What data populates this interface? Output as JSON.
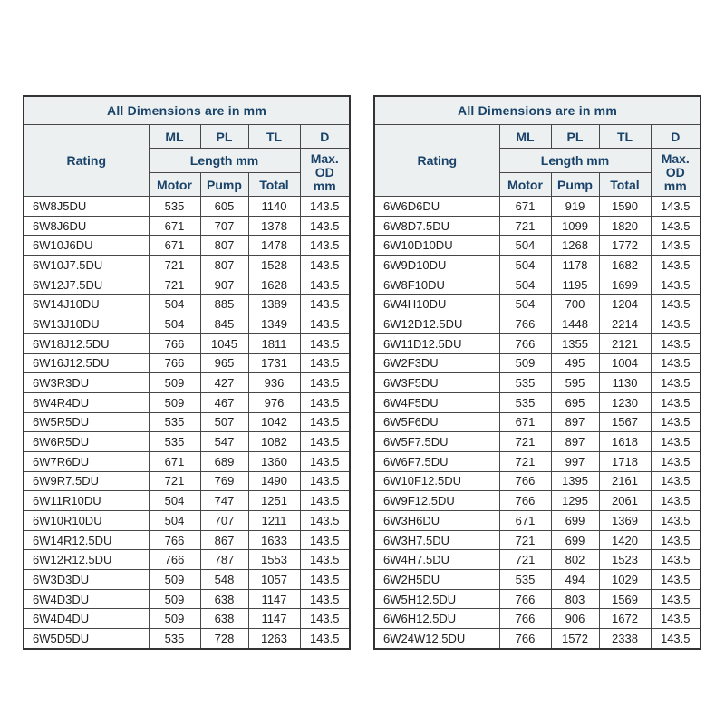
{
  "colors": {
    "page_bg": "#ffffff",
    "header_bg": "#edf0f1",
    "header_text": "#1a4369",
    "data_text": "#212121",
    "border": "#474747",
    "border_dark": "#333333",
    "row_bg": "#ffffff"
  },
  "tables": [
    {
      "title": "All Dimensions are in mm",
      "header": {
        "rating": "Rating",
        "ml": "ML",
        "pl": "PL",
        "tl": "TL",
        "d": "D",
        "length_group": "Length mm",
        "max_od": "Max. OD mm",
        "motor": "Motor",
        "pump": "Pump",
        "total": "Total"
      },
      "rows": [
        [
          "6W8J5DU",
          "535",
          "605",
          "1140",
          "143.5"
        ],
        [
          "6W8J6DU",
          "671",
          "707",
          "1378",
          "143.5"
        ],
        [
          "6W10J6DU",
          "671",
          "807",
          "1478",
          "143.5"
        ],
        [
          "6W10J7.5DU",
          "721",
          "807",
          "1528",
          "143.5"
        ],
        [
          "6W12J7.5DU",
          "721",
          "907",
          "1628",
          "143.5"
        ],
        [
          "6W14J10DU",
          "504",
          "885",
          "1389",
          "143.5"
        ],
        [
          "6W13J10DU",
          "504",
          "845",
          "1349",
          "143.5"
        ],
        [
          "6W18J12.5DU",
          "766",
          "1045",
          "1811",
          "143.5"
        ],
        [
          "6W16J12.5DU",
          "766",
          "965",
          "1731",
          "143.5"
        ],
        [
          "6W3R3DU",
          "509",
          "427",
          "936",
          "143.5"
        ],
        [
          "6W4R4DU",
          "509",
          "467",
          "976",
          "143.5"
        ],
        [
          "6W5R5DU",
          "535",
          "507",
          "1042",
          "143.5"
        ],
        [
          "6W6R5DU",
          "535",
          "547",
          "1082",
          "143.5"
        ],
        [
          "6W7R6DU",
          "671",
          "689",
          "1360",
          "143.5"
        ],
        [
          "6W9R7.5DU",
          "721",
          "769",
          "1490",
          "143.5"
        ],
        [
          "6W11R10DU",
          "504",
          "747",
          "1251",
          "143.5"
        ],
        [
          "6W10R10DU",
          "504",
          "707",
          "1211",
          "143.5"
        ],
        [
          "6W14R12.5DU",
          "766",
          "867",
          "1633",
          "143.5"
        ],
        [
          "6W12R12.5DU",
          "766",
          "787",
          "1553",
          "143.5"
        ],
        [
          "6W3D3DU",
          "509",
          "548",
          "1057",
          "143.5"
        ],
        [
          "6W4D3DU",
          "509",
          "638",
          "1147",
          "143.5"
        ],
        [
          "6W4D4DU",
          "509",
          "638",
          "1147",
          "143.5"
        ],
        [
          "6W5D5DU",
          "535",
          "728",
          "1263",
          "143.5"
        ]
      ]
    },
    {
      "title": "All Dimensions are in mm",
      "header": {
        "rating": "Rating",
        "ml": "ML",
        "pl": "PL",
        "tl": "TL",
        "d": "D",
        "length_group": "Length mm",
        "max_od": "Max. OD mm",
        "motor": "Motor",
        "pump": "Pump",
        "total": "Total"
      },
      "rows": [
        [
          "6W6D6DU",
          "671",
          "919",
          "1590",
          "143.5"
        ],
        [
          "6W8D7.5DU",
          "721",
          "1099",
          "1820",
          "143.5"
        ],
        [
          "6W10D10DU",
          "504",
          "1268",
          "1772",
          "143.5"
        ],
        [
          "6W9D10DU",
          "504",
          "1178",
          "1682",
          "143.5"
        ],
        [
          "6W8F10DU",
          "504",
          "1195",
          "1699",
          "143.5"
        ],
        [
          "6W4H10DU",
          "504",
          "700",
          "1204",
          "143.5"
        ],
        [
          "6W12D12.5DU",
          "766",
          "1448",
          "2214",
          "143.5"
        ],
        [
          "6W11D12.5DU",
          "766",
          "1355",
          "2121",
          "143.5"
        ],
        [
          "6W2F3DU",
          "509",
          "495",
          "1004",
          "143.5"
        ],
        [
          "6W3F5DU",
          "535",
          "595",
          "1130",
          "143.5"
        ],
        [
          "6W4F5DU",
          "535",
          "695",
          "1230",
          "143.5"
        ],
        [
          "6W5F6DU",
          "671",
          "897",
          "1567",
          "143.5"
        ],
        [
          "6W5F7.5DU",
          "721",
          "897",
          "1618",
          "143.5"
        ],
        [
          "6W6F7.5DU",
          "721",
          "997",
          "1718",
          "143.5"
        ],
        [
          "6W10F12.5DU",
          "766",
          "1395",
          "2161",
          "143.5"
        ],
        [
          "6W9F12.5DU",
          "766",
          "1295",
          "2061",
          "143.5"
        ],
        [
          "6W3H6DU",
          "671",
          "699",
          "1369",
          "143.5"
        ],
        [
          "6W3H7.5DU",
          "721",
          "699",
          "1420",
          "143.5"
        ],
        [
          "6W4H7.5DU",
          "721",
          "802",
          "1523",
          "143.5"
        ],
        [
          "6W2H5DU",
          "535",
          "494",
          "1029",
          "143.5"
        ],
        [
          "6W5H12.5DU",
          "766",
          "803",
          "1569",
          "143.5"
        ],
        [
          "6W6H12.5DU",
          "766",
          "906",
          "1672",
          "143.5"
        ],
        [
          "6W24W12.5DU",
          "766",
          "1572",
          "2338",
          "143.5"
        ]
      ]
    }
  ]
}
